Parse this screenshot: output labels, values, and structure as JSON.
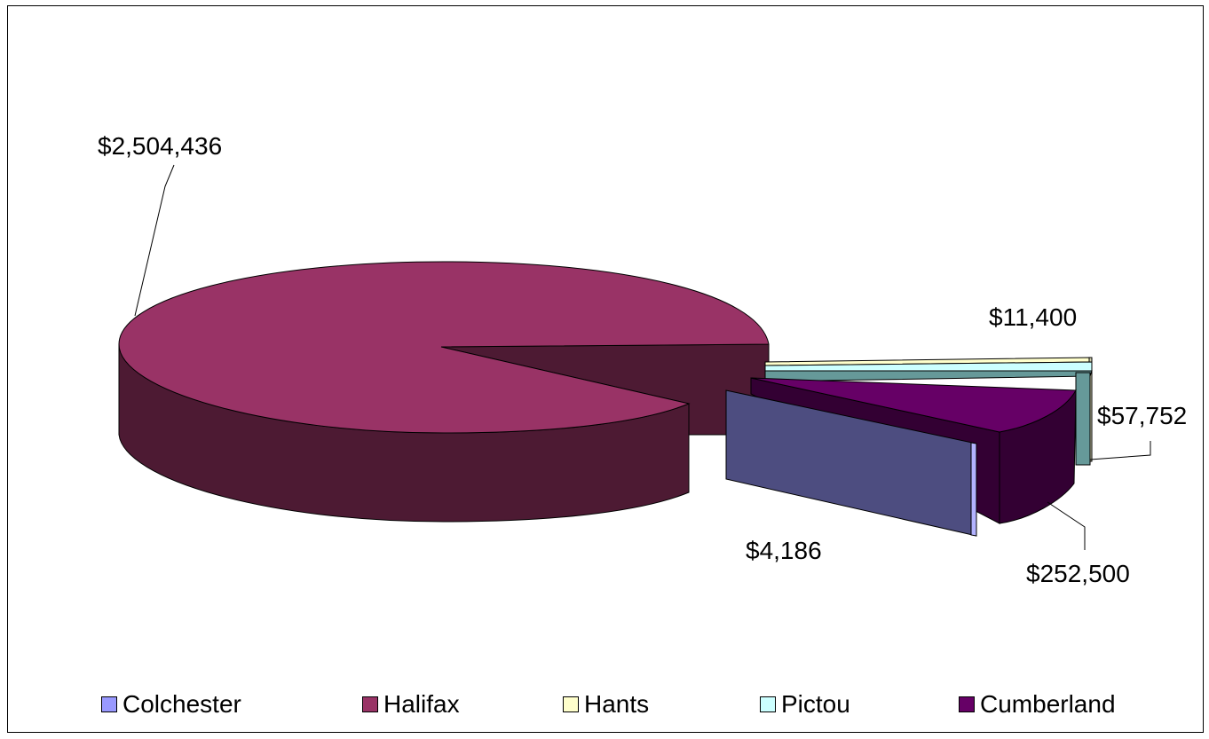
{
  "chart_data": {
    "type": "pie",
    "style": "3d-exploded",
    "categories": [
      "Colchester",
      "Halifax",
      "Hants",
      "Pictou",
      "Cumberland"
    ],
    "values": [
      4186,
      2504436,
      11400,
      57752,
      252500
    ],
    "value_labels": [
      "$4,186",
      "$2,504,436",
      "$11,400",
      "$57,752",
      "$252,500"
    ],
    "colors": [
      "#9999ff",
      "#993366",
      "#ffffcc",
      "#ccffff",
      "#660066"
    ],
    "legend_position": "bottom"
  }
}
